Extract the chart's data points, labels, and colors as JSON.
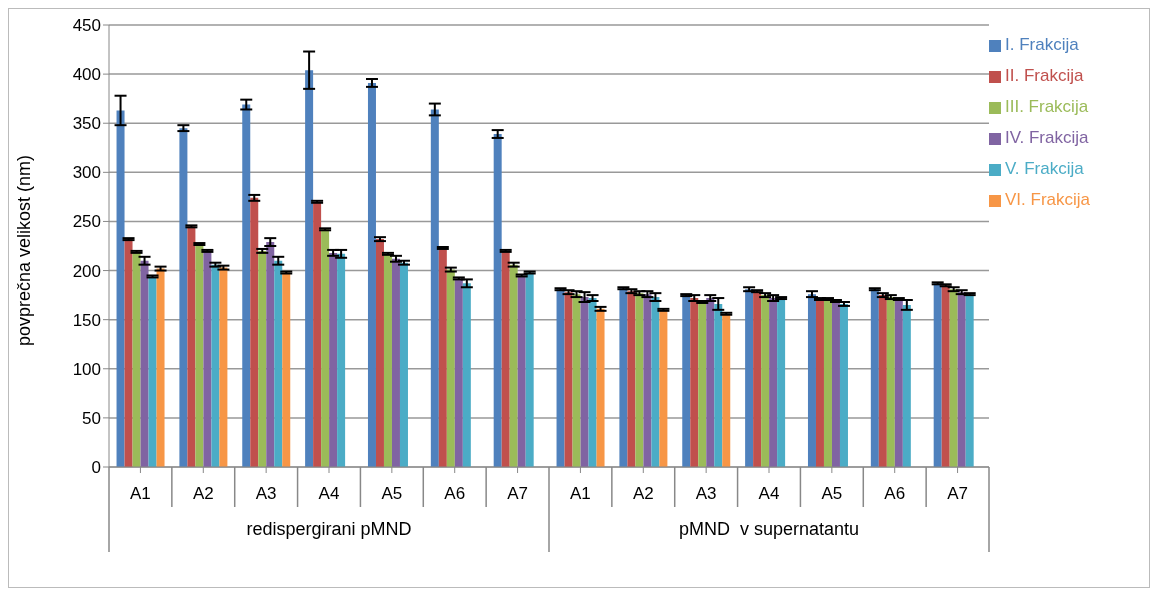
{
  "chart_data": {
    "type": "bar",
    "ylabel": "povprečna velikost (nm)",
    "categories": [
      "A1",
      "A2",
      "A3",
      "A4",
      "A5",
      "A6",
      "A7",
      "A1",
      "A2",
      "A3",
      "A4",
      "A5",
      "A6",
      "A7"
    ],
    "series": [
      {
        "name": "I. Frakcija",
        "color": "#4f81bd",
        "values": [
          363,
          345,
          369,
          404,
          391,
          364,
          339,
          181,
          182,
          175,
          181,
          176,
          181,
          187
        ],
        "errors": [
          15,
          3,
          5,
          19,
          4,
          6,
          4,
          1,
          1,
          1,
          2,
          3,
          1,
          1
        ]
      },
      {
        "name": "II. Frakcija",
        "color": "#c0504d",
        "values": [
          232,
          245,
          274,
          270,
          232,
          223,
          220,
          178,
          179,
          172,
          179,
          171,
          175,
          185
        ],
        "errors": [
          1,
          1,
          3,
          1,
          2,
          1,
          1,
          2,
          2,
          3,
          1,
          1,
          2,
          1
        ]
      },
      {
        "name": "III. Frakcija",
        "color": "#9bbb59",
        "values": [
          219,
          227,
          220,
          242,
          217,
          201,
          206,
          176,
          177,
          168,
          175,
          171,
          173,
          181
        ],
        "errors": [
          1,
          1,
          2,
          1,
          1,
          2,
          2,
          3,
          2,
          1,
          2,
          1,
          2,
          2
        ]
      },
      {
        "name": "IV. Frakcija",
        "color": "#8064a2",
        "values": [
          210,
          220,
          229,
          218,
          212,
          192,
          195,
          173,
          176,
          172,
          172,
          169,
          171,
          178
        ],
        "errors": [
          4,
          1,
          4,
          3,
          3,
          1,
          1,
          5,
          3,
          3,
          3,
          1,
          1,
          2
        ]
      },
      {
        "name": "V. Frakcija",
        "color": "#4bacc6",
        "values": [
          194,
          206,
          210,
          217,
          208,
          187,
          198,
          172,
          173,
          166,
          172,
          166,
          165,
          176
        ],
        "errors": [
          1,
          2,
          4,
          4,
          2,
          4,
          1,
          3,
          4,
          6,
          1,
          2,
          5,
          1
        ]
      },
      {
        "name": "VI. Frakcija",
        "color": "#f79646",
        "values": [
          202,
          203,
          198,
          null,
          null,
          null,
          null,
          161,
          160,
          156,
          null,
          null,
          null,
          null
        ],
        "errors": [
          2,
          2,
          1,
          null,
          null,
          null,
          null,
          2,
          1,
          1,
          null,
          null,
          null,
          null
        ]
      }
    ],
    "ylim": [
      0,
      450
    ],
    "yticks": [
      0,
      50,
      100,
      150,
      200,
      250,
      300,
      350,
      400,
      450
    ],
    "grid": "y",
    "legend": "right",
    "annotations": [
      "redispergirani pMND",
      "pMND  v supernatantu"
    ]
  }
}
